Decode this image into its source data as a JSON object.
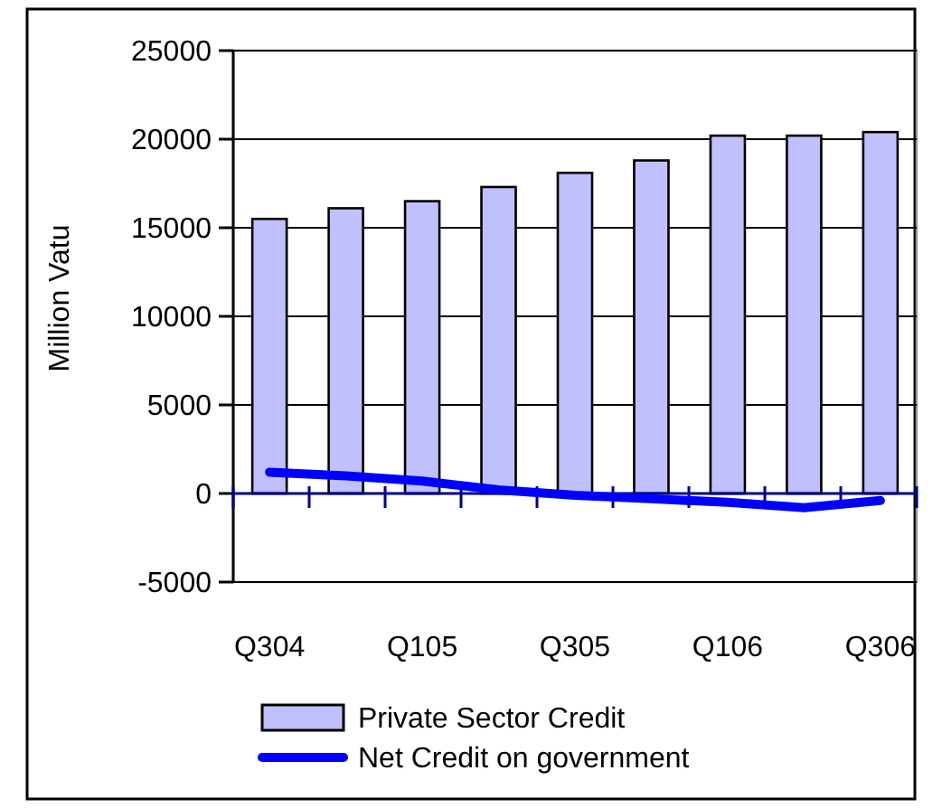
{
  "chart_data": {
    "type": "bar",
    "ylabel": "Million Vatu",
    "categories": [
      "Q304",
      null,
      "Q105",
      null,
      "Q305",
      null,
      "Q106",
      null,
      "Q306"
    ],
    "series": [
      {
        "name": "Private Sector Credit",
        "color": "#c0c0ff",
        "values": [
          15500,
          16100,
          16500,
          17300,
          18100,
          18800,
          20200,
          20200,
          20400
        ]
      },
      {
        "name": "Net Credit on government",
        "type": "line",
        "color": "#0000ff",
        "values": [
          1200,
          1000,
          700,
          200,
          -100,
          -300,
          -500,
          -800,
          -400
        ]
      }
    ],
    "ylim": [
      -5000,
      25000
    ],
    "yticks": [
      -5000,
      0,
      5000,
      10000,
      15000,
      20000,
      25000
    ],
    "grid": "y",
    "legend": "bottom",
    "ref_lines": [
      {
        "axis": "y",
        "value": 0,
        "color": "#00008b"
      }
    ]
  }
}
